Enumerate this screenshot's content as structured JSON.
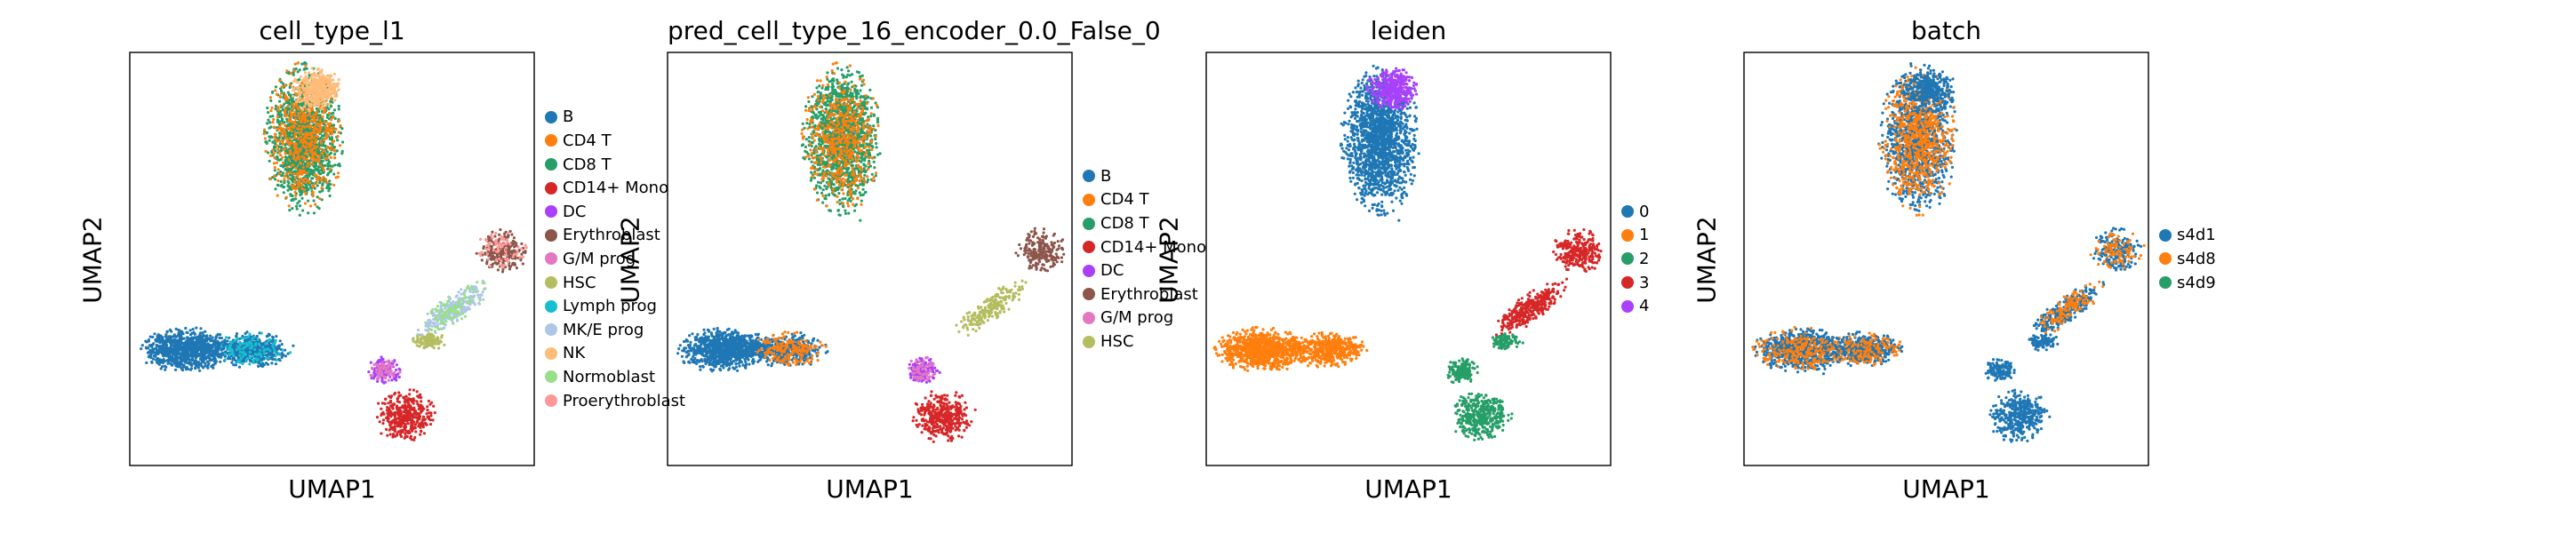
{
  "chart_data": [
    {
      "type": "scatter",
      "title": "cell_type_l1",
      "xlabel": "UMAP1",
      "ylabel": "UMAP2",
      "legend_position": "right",
      "categories": [
        {
          "name": "B",
          "color": "#1f77b4"
        },
        {
          "name": "CD4 T",
          "color": "#ff7f0e"
        },
        {
          "name": "CD8 T",
          "color": "#279e68"
        },
        {
          "name": "CD14+ Mono",
          "color": "#d62728"
        },
        {
          "name": "DC",
          "color": "#aa40fc"
        },
        {
          "name": "Erythroblast",
          "color": "#8c564b"
        },
        {
          "name": "G/M prog",
          "color": "#e377c2"
        },
        {
          "name": "HSC",
          "color": "#b5bd61"
        },
        {
          "name": "Lymph prog",
          "color": "#17becf"
        },
        {
          "name": "MK/E prog",
          "color": "#aec7e8"
        },
        {
          "name": "NK",
          "color": "#ffbb78"
        },
        {
          "name": "Normoblast",
          "color": "#98df8a"
        },
        {
          "name": "Proerythroblast",
          "color": "#ff9896"
        }
      ]
    },
    {
      "type": "scatter",
      "title": "pred_cell_type_16_encoder_0.0_False_0",
      "xlabel": "UMAP1",
      "ylabel": "UMAP2",
      "legend_position": "right",
      "categories": [
        {
          "name": "B",
          "color": "#1f77b4"
        },
        {
          "name": "CD4 T",
          "color": "#ff7f0e"
        },
        {
          "name": "CD8 T",
          "color": "#279e68"
        },
        {
          "name": "CD14+ Mono",
          "color": "#d62728"
        },
        {
          "name": "DC",
          "color": "#aa40fc"
        },
        {
          "name": "Erythroblast",
          "color": "#8c564b"
        },
        {
          "name": "G/M prog",
          "color": "#e377c2"
        },
        {
          "name": "HSC",
          "color": "#b5bd61"
        }
      ]
    },
    {
      "type": "scatter",
      "title": "leiden",
      "xlabel": "UMAP1",
      "ylabel": "UMAP2",
      "legend_position": "right",
      "categories": [
        {
          "name": "0",
          "color": "#1f77b4"
        },
        {
          "name": "1",
          "color": "#ff7f0e"
        },
        {
          "name": "2",
          "color": "#279e68"
        },
        {
          "name": "3",
          "color": "#d62728"
        },
        {
          "name": "4",
          "color": "#aa40fc"
        }
      ]
    },
    {
      "type": "scatter",
      "title": "batch",
      "xlabel": "UMAP1",
      "ylabel": "UMAP2",
      "legend_position": "right",
      "categories": [
        {
          "name": "s4d1",
          "color": "#1f77b4"
        },
        {
          "name": "s4d8",
          "color": "#ff7f0e"
        },
        {
          "name": "s4d9",
          "color": "#279e68"
        }
      ]
    }
  ]
}
